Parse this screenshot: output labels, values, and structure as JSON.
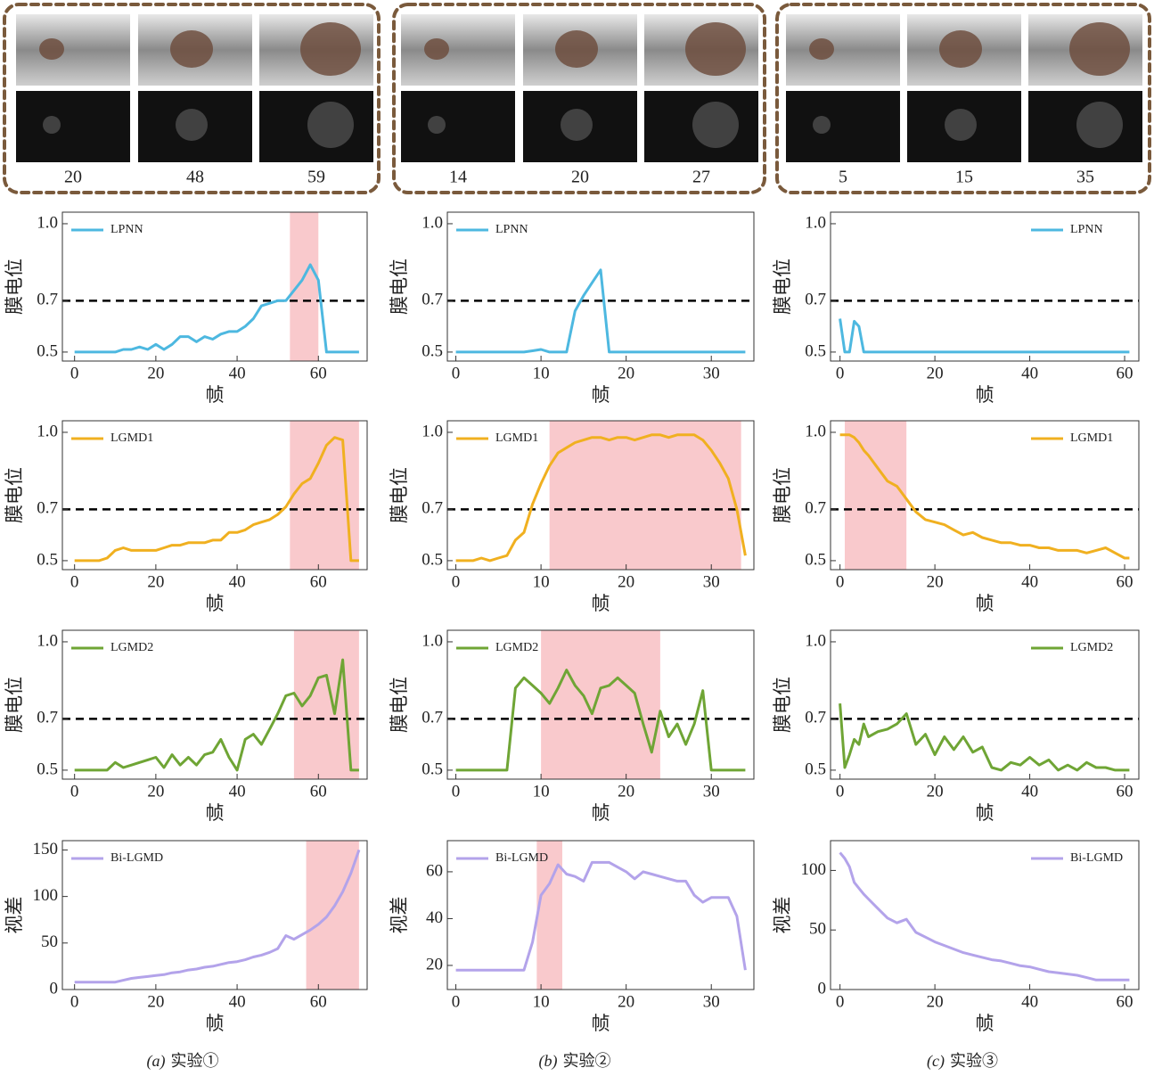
{
  "chart_data": [
    {
      "type": "line",
      "ylabel": "膜电位",
      "xlabel": "帧",
      "legend": "upper left",
      "threshold": 0.7,
      "highlight": [
        53,
        60
      ],
      "xlim": [
        -3,
        72
      ],
      "ylim": [
        0.465,
        1.045
      ],
      "xticks": [
        0,
        20,
        40,
        60
      ],
      "yticks": [
        0.5,
        0.7,
        {
          "value": 1,
          "label": "1.0"
        }
      ],
      "x": [
        0,
        2,
        4,
        6,
        8,
        10,
        12,
        14,
        16,
        18,
        20,
        22,
        24,
        26,
        28,
        30,
        32,
        34,
        36,
        38,
        40,
        42,
        44,
        46,
        48,
        50,
        52,
        54,
        56,
        58,
        60,
        62,
        64,
        66,
        68,
        70
      ],
      "series": [
        {
          "name": "LPNN",
          "color": "#4db8e0",
          "values": [
            0.5,
            0.5,
            0.5,
            0.5,
            0.5,
            0.5,
            0.51,
            0.51,
            0.52,
            0.51,
            0.53,
            0.51,
            0.53,
            0.56,
            0.56,
            0.54,
            0.56,
            0.55,
            0.57,
            0.58,
            0.58,
            0.6,
            0.63,
            0.68,
            0.69,
            0.7,
            0.7,
            0.74,
            0.78,
            0.84,
            0.78,
            0.5,
            0.5,
            0.5,
            0.5,
            0.5
          ]
        }
      ]
    },
    {
      "type": "line",
      "ylabel": "膜电位",
      "xlabel": "帧",
      "legend": "upper left",
      "threshold": 0.7,
      "highlight": [
        53,
        70
      ],
      "xlim": [
        -3,
        72
      ],
      "ylim": [
        0.465,
        1.045
      ],
      "xticks": [
        0,
        20,
        40,
        60
      ],
      "yticks": [
        0.5,
        0.7,
        {
          "value": 1,
          "label": "1.0"
        }
      ],
      "x": [
        0,
        2,
        4,
        6,
        8,
        10,
        12,
        14,
        16,
        18,
        20,
        22,
        24,
        26,
        28,
        30,
        32,
        34,
        36,
        38,
        40,
        42,
        44,
        46,
        48,
        50,
        52,
        54,
        56,
        58,
        60,
        62,
        64,
        66,
        68,
        70
      ],
      "series": [
        {
          "name": "LGMD1",
          "color": "#f0b020",
          "values": [
            0.5,
            0.5,
            0.5,
            0.5,
            0.51,
            0.54,
            0.55,
            0.54,
            0.54,
            0.54,
            0.54,
            0.55,
            0.56,
            0.56,
            0.57,
            0.57,
            0.57,
            0.58,
            0.58,
            0.61,
            0.61,
            0.62,
            0.64,
            0.65,
            0.66,
            0.68,
            0.71,
            0.76,
            0.8,
            0.82,
            0.88,
            0.95,
            0.98,
            0.97,
            0.5,
            0.5
          ]
        }
      ]
    },
    {
      "type": "line",
      "ylabel": "膜电位",
      "xlabel": "帧",
      "legend": "upper left",
      "threshold": 0.7,
      "highlight": [
        54,
        70
      ],
      "xlim": [
        -3,
        72
      ],
      "ylim": [
        0.465,
        1.045
      ],
      "xticks": [
        0,
        20,
        40,
        60
      ],
      "yticks": [
        0.5,
        0.7,
        {
          "value": 1,
          "label": "1.0"
        }
      ],
      "x": [
        0,
        2,
        4,
        6,
        8,
        10,
        12,
        14,
        16,
        18,
        20,
        22,
        24,
        26,
        28,
        30,
        32,
        34,
        36,
        38,
        40,
        42,
        44,
        46,
        48,
        50,
        52,
        54,
        56,
        58,
        60,
        62,
        64,
        66,
        68,
        70
      ],
      "series": [
        {
          "name": "LGMD2",
          "color": "#6fa535",
          "values": [
            0.5,
            0.5,
            0.5,
            0.5,
            0.5,
            0.53,
            0.51,
            0.52,
            0.53,
            0.54,
            0.55,
            0.51,
            0.56,
            0.52,
            0.55,
            0.52,
            0.56,
            0.57,
            0.62,
            0.55,
            0.5,
            0.62,
            0.64,
            0.6,
            0.66,
            0.72,
            0.79,
            0.8,
            0.75,
            0.79,
            0.86,
            0.87,
            0.72,
            0.93,
            0.5,
            0.5
          ]
        }
      ]
    },
    {
      "type": "line",
      "ylabel": "视差",
      "xlabel": "帧",
      "legend": "upper left",
      "highlight": [
        57,
        70
      ],
      "xlim": [
        -3,
        72
      ],
      "ylim": [
        0,
        160
      ],
      "xticks": [
        0,
        20,
        40,
        60
      ],
      "yticks": [
        0,
        50,
        100,
        150
      ],
      "x": [
        0,
        2,
        4,
        6,
        8,
        10,
        12,
        14,
        16,
        18,
        20,
        22,
        24,
        26,
        28,
        30,
        32,
        34,
        36,
        38,
        40,
        42,
        44,
        46,
        48,
        50,
        52,
        54,
        56,
        58,
        60,
        62,
        64,
        66,
        68,
        70
      ],
      "series": [
        {
          "name": "Bi-LGMD",
          "color": "#b3a3ea",
          "values": [
            8,
            8,
            8,
            8,
            8,
            8,
            10,
            12,
            13,
            14,
            15,
            16,
            18,
            19,
            21,
            22,
            24,
            25,
            27,
            29,
            30,
            32,
            35,
            37,
            40,
            44,
            58,
            54,
            59,
            64,
            70,
            78,
            90,
            105,
            125,
            150
          ]
        }
      ]
    },
    {
      "type": "line",
      "ylabel": "膜电位",
      "xlabel": "帧",
      "legend": "upper left",
      "threshold": 0.7,
      "xlim": [
        -1,
        35
      ],
      "ylim": [
        0.465,
        1.045
      ],
      "xticks": [
        0,
        10,
        20,
        30
      ],
      "yticks": [
        0.5,
        0.7,
        {
          "value": 1,
          "label": "1.0"
        }
      ],
      "x": [
        0,
        1,
        2,
        3,
        4,
        5,
        6,
        7,
        8,
        9,
        10,
        11,
        12,
        13,
        14,
        15,
        16,
        17,
        18,
        19,
        20,
        21,
        22,
        23,
        24,
        25,
        26,
        27,
        28,
        29,
        30,
        31,
        32,
        33,
        34
      ],
      "series": [
        {
          "name": "LPNN",
          "color": "#4db8e0",
          "values": [
            0.5,
            0.5,
            0.5,
            0.5,
            0.5,
            0.5,
            0.5,
            0.5,
            0.5,
            0.505,
            0.51,
            0.5,
            0.5,
            0.5,
            0.66,
            0.72,
            0.77,
            0.82,
            0.5,
            0.5,
            0.5,
            0.5,
            0.5,
            0.5,
            0.5,
            0.5,
            0.5,
            0.5,
            0.5,
            0.5,
            0.5,
            0.5,
            0.5,
            0.5,
            0.5
          ]
        }
      ]
    },
    {
      "type": "line",
      "ylabel": "膜电位",
      "xlabel": "帧",
      "legend": "upper left",
      "threshold": 0.7,
      "highlight": [
        11,
        33.5
      ],
      "xlim": [
        -1,
        35
      ],
      "ylim": [
        0.465,
        1.045
      ],
      "xticks": [
        0,
        10,
        20,
        30
      ],
      "yticks": [
        0.5,
        0.7,
        {
          "value": 1,
          "label": "1.0"
        }
      ],
      "x": [
        0,
        1,
        2,
        3,
        4,
        5,
        6,
        7,
        8,
        9,
        10,
        11,
        12,
        13,
        14,
        15,
        16,
        17,
        18,
        19,
        20,
        21,
        22,
        23,
        24,
        25,
        26,
        27,
        28,
        29,
        30,
        31,
        32,
        33,
        34
      ],
      "series": [
        {
          "name": "LGMD1",
          "color": "#f0b020",
          "values": [
            0.5,
            0.5,
            0.5,
            0.51,
            0.5,
            0.51,
            0.52,
            0.58,
            0.61,
            0.72,
            0.8,
            0.87,
            0.92,
            0.94,
            0.96,
            0.97,
            0.98,
            0.98,
            0.97,
            0.98,
            0.98,
            0.97,
            0.98,
            0.99,
            0.99,
            0.98,
            0.99,
            0.99,
            0.99,
            0.97,
            0.93,
            0.88,
            0.82,
            0.7,
            0.52
          ]
        }
      ]
    },
    {
      "type": "line",
      "ylabel": "膜电位",
      "xlabel": "帧",
      "legend": "upper left",
      "threshold": 0.7,
      "highlight": [
        10,
        24
      ],
      "xlim": [
        -1,
        35
      ],
      "ylim": [
        0.465,
        1.045
      ],
      "xticks": [
        0,
        10,
        20,
        30
      ],
      "yticks": [
        0.5,
        0.7,
        {
          "value": 1,
          "label": "1.0"
        }
      ],
      "x": [
        0,
        1,
        2,
        3,
        4,
        5,
        6,
        7,
        8,
        9,
        10,
        11,
        12,
        13,
        14,
        15,
        16,
        17,
        18,
        19,
        20,
        21,
        22,
        23,
        24,
        25,
        26,
        27,
        28,
        29,
        30,
        31,
        32,
        33,
        34
      ],
      "series": [
        {
          "name": "LGMD2",
          "color": "#6fa535",
          "values": [
            0.5,
            0.5,
            0.5,
            0.5,
            0.5,
            0.5,
            0.5,
            0.82,
            0.86,
            0.83,
            0.8,
            0.76,
            0.82,
            0.89,
            0.83,
            0.79,
            0.72,
            0.82,
            0.83,
            0.86,
            0.83,
            0.8,
            0.68,
            0.57,
            0.73,
            0.63,
            0.68,
            0.6,
            0.68,
            0.81,
            0.5,
            0.5,
            0.5,
            0.5,
            0.5
          ]
        }
      ]
    },
    {
      "type": "line",
      "ylabel": "视差",
      "xlabel": "帧",
      "legend": "upper left",
      "highlight": [
        9.5,
        12.5
      ],
      "xlim": [
        -1,
        35
      ],
      "ylim": [
        9.7,
        73.3
      ],
      "xticks": [
        0,
        10,
        20,
        30
      ],
      "yticks": [
        20,
        40,
        60
      ],
      "x": [
        0,
        1,
        2,
        3,
        4,
        5,
        6,
        7,
        8,
        9,
        10,
        11,
        12,
        13,
        14,
        15,
        16,
        17,
        18,
        19,
        20,
        21,
        22,
        23,
        24,
        25,
        26,
        27,
        28,
        29,
        30,
        31,
        32,
        33,
        34
      ],
      "series": [
        {
          "name": "Bi-LGMD",
          "color": "#b3a3ea",
          "values": [
            18,
            18,
            18,
            18,
            18,
            18,
            18,
            18,
            18,
            30,
            50,
            55,
            63,
            59,
            58,
            56,
            64,
            64,
            64,
            62,
            60,
            57,
            60,
            59,
            58,
            57,
            56,
            56,
            50,
            47,
            49,
            49,
            49,
            41,
            18
          ]
        }
      ]
    },
    {
      "type": "line",
      "ylabel": "膜电位",
      "xlabel": "帧",
      "legend": "upper right",
      "threshold": 0.7,
      "xlim": [
        -2,
        63
      ],
      "ylim": [
        0.465,
        1.045
      ],
      "xticks": [
        0,
        20,
        40,
        60
      ],
      "yticks": [
        0.5,
        0.7,
        {
          "value": 1,
          "label": "1.0"
        }
      ],
      "x": [
        0,
        1,
        2,
        3,
        4,
        5,
        6,
        8,
        10,
        12,
        14,
        16,
        18,
        20,
        22,
        24,
        26,
        28,
        30,
        32,
        34,
        36,
        38,
        40,
        42,
        44,
        46,
        48,
        50,
        52,
        54,
        56,
        58,
        60,
        61
      ],
      "series": [
        {
          "name": "LPNN",
          "color": "#4db8e0",
          "values": [
            0.63,
            0.5,
            0.5,
            0.62,
            0.6,
            0.5,
            0.5,
            0.5,
            0.5,
            0.5,
            0.5,
            0.5,
            0.5,
            0.5,
            0.5,
            0.5,
            0.5,
            0.5,
            0.5,
            0.5,
            0.5,
            0.5,
            0.5,
            0.5,
            0.5,
            0.5,
            0.5,
            0.5,
            0.5,
            0.5,
            0.5,
            0.5,
            0.5,
            0.5,
            0.5
          ]
        }
      ]
    },
    {
      "type": "line",
      "ylabel": "膜电位",
      "xlabel": "帧",
      "legend": "upper right",
      "threshold": 0.7,
      "highlight": [
        1,
        14
      ],
      "xlim": [
        -2,
        63
      ],
      "ylim": [
        0.465,
        1.045
      ],
      "xticks": [
        0,
        20,
        40,
        60
      ],
      "yticks": [
        0.5,
        0.7,
        {
          "value": 1,
          "label": "1.0"
        }
      ],
      "x": [
        0,
        1,
        2,
        3,
        4,
        5,
        6,
        8,
        10,
        12,
        14,
        16,
        18,
        20,
        22,
        24,
        26,
        28,
        30,
        32,
        34,
        36,
        38,
        40,
        42,
        44,
        46,
        48,
        50,
        52,
        54,
        56,
        58,
        60,
        61
      ],
      "series": [
        {
          "name": "LGMD1",
          "color": "#f0b020",
          "values": [
            0.99,
            0.99,
            0.99,
            0.98,
            0.96,
            0.93,
            0.91,
            0.86,
            0.81,
            0.79,
            0.74,
            0.69,
            0.66,
            0.65,
            0.64,
            0.62,
            0.6,
            0.61,
            0.59,
            0.58,
            0.57,
            0.57,
            0.56,
            0.56,
            0.55,
            0.55,
            0.54,
            0.54,
            0.54,
            0.53,
            0.54,
            0.55,
            0.53,
            0.51,
            0.51
          ]
        }
      ]
    },
    {
      "type": "line",
      "ylabel": "膜电位",
      "xlabel": "帧",
      "legend": "upper right",
      "threshold": 0.7,
      "xlim": [
        -2,
        63
      ],
      "ylim": [
        0.465,
        1.045
      ],
      "xticks": [
        0,
        20,
        40,
        60
      ],
      "yticks": [
        0.5,
        0.7,
        {
          "value": 1,
          "label": "1.0"
        }
      ],
      "x": [
        0,
        1,
        2,
        3,
        4,
        5,
        6,
        8,
        10,
        12,
        14,
        16,
        18,
        20,
        22,
        24,
        26,
        28,
        30,
        32,
        34,
        36,
        38,
        40,
        42,
        44,
        46,
        48,
        50,
        52,
        54,
        56,
        58,
        60,
        61
      ],
      "series": [
        {
          "name": "LGMD2",
          "color": "#6fa535",
          "values": [
            0.76,
            0.51,
            0.56,
            0.62,
            0.6,
            0.68,
            0.63,
            0.65,
            0.66,
            0.68,
            0.72,
            0.6,
            0.64,
            0.56,
            0.63,
            0.58,
            0.63,
            0.57,
            0.59,
            0.51,
            0.5,
            0.53,
            0.52,
            0.55,
            0.52,
            0.54,
            0.5,
            0.52,
            0.5,
            0.53,
            0.51,
            0.51,
            0.5,
            0.5,
            0.5
          ]
        }
      ]
    },
    {
      "type": "line",
      "ylabel": "视差",
      "xlabel": "帧",
      "legend": "upper right",
      "xlim": [
        -2,
        63
      ],
      "ylim": [
        0,
        125
      ],
      "xticks": [
        0,
        20,
        40,
        60
      ],
      "yticks": [
        0,
        50,
        100
      ],
      "x": [
        0,
        1,
        2,
        3,
        4,
        5,
        6,
        8,
        10,
        12,
        14,
        16,
        18,
        20,
        22,
        24,
        26,
        28,
        30,
        32,
        34,
        36,
        38,
        40,
        42,
        44,
        46,
        48,
        50,
        52,
        54,
        56,
        58,
        60,
        61
      ],
      "series": [
        {
          "name": "Bi-LGMD",
          "color": "#b3a3ea",
          "values": [
            115,
            110,
            103,
            90,
            85,
            80,
            76,
            68,
            60,
            56,
            59,
            48,
            44,
            40,
            37,
            34,
            31,
            29,
            27,
            25,
            24,
            22,
            20,
            19,
            17,
            15,
            14,
            13,
            12,
            10,
            8,
            8,
            8,
            8,
            8
          ]
        }
      ]
    }
  ],
  "image_panels": [
    {
      "frames": [
        20,
        48,
        59
      ]
    },
    {
      "frames": [
        14,
        20,
        27
      ]
    },
    {
      "frames": [
        5,
        15,
        35
      ]
    }
  ],
  "captions": [
    {
      "label": "(a)",
      "text": "实验①"
    },
    {
      "label": "(b)",
      "text": "实验②"
    },
    {
      "label": "(c)",
      "text": "实验③"
    }
  ]
}
